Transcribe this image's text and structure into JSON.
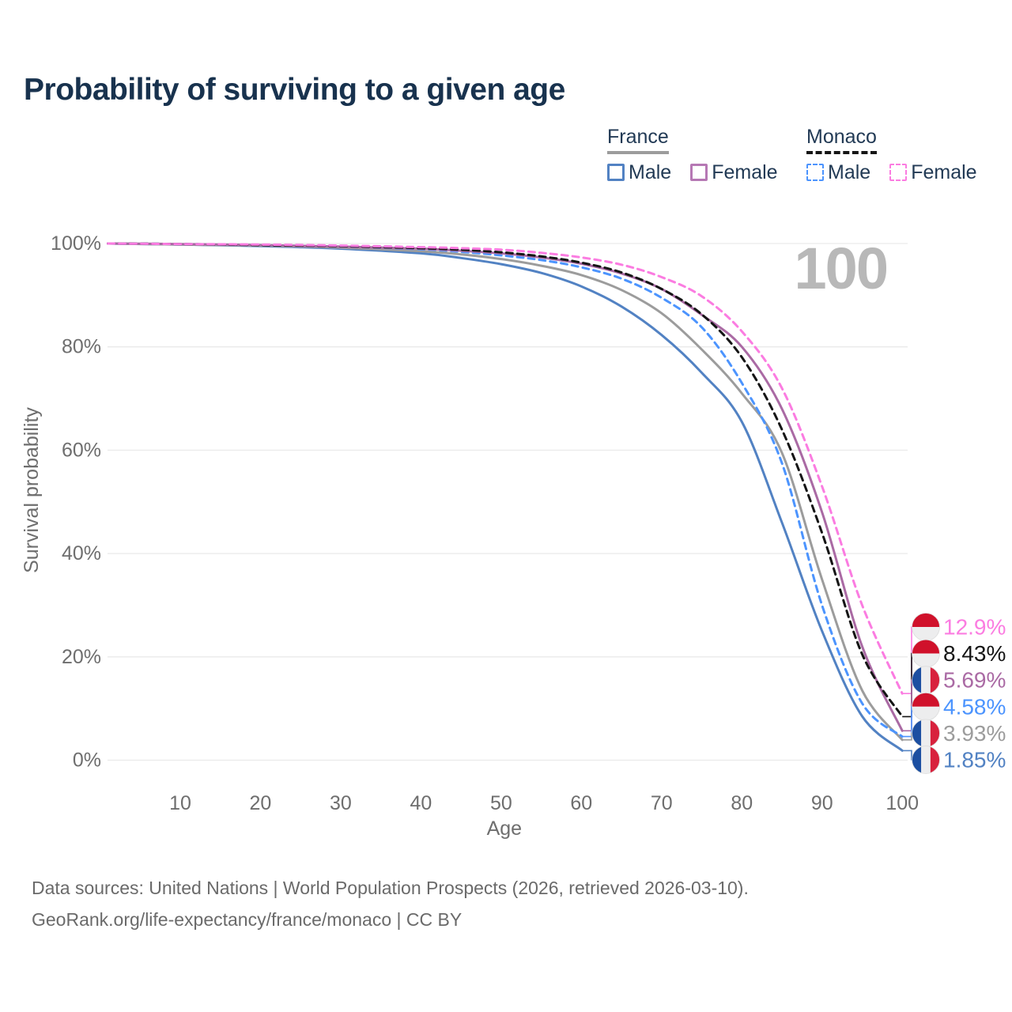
{
  "title": "Probability of surviving to a given age",
  "watermark": "100",
  "legend": {
    "groups": [
      {
        "label": "France",
        "line_color": "#9c9c9c",
        "dashed": false,
        "items": [
          {
            "label": "Male",
            "color": "#5282c3",
            "dashed": false
          },
          {
            "label": "Female",
            "color": "#b678b4",
            "dashed": false
          }
        ]
      },
      {
        "label": "Monaco",
        "line_color": "#151515",
        "dashed": true,
        "items": [
          {
            "label": "Male",
            "color": "#4c94fe",
            "dashed": true
          },
          {
            "label": "Female",
            "color": "#fb7ce1",
            "dashed": true
          }
        ]
      }
    ]
  },
  "chart_data": {
    "type": "line",
    "title": "Probability of surviving to a given age",
    "xlabel": "Age",
    "ylabel": "Survival probability",
    "xlim": [
      1,
      100
    ],
    "ylim": [
      0,
      100
    ],
    "grid": "horizontal",
    "x_ticks": [
      10,
      20,
      30,
      40,
      50,
      60,
      70,
      80,
      90,
      100
    ],
    "y_tick_values": [
      100,
      80,
      60,
      40,
      20,
      0
    ],
    "y_tick_labels": [
      "100%",
      "80%",
      "60%",
      "40%",
      "20%",
      "0%"
    ],
    "ages": [
      1,
      10,
      20,
      30,
      40,
      45,
      50,
      55,
      60,
      65,
      70,
      75,
      80,
      85,
      90,
      95,
      100
    ],
    "series": [
      {
        "name": "Monaco Female",
        "country": "Monaco",
        "sex": "Female",
        "color": "#fb7ce1",
        "dashed": true,
        "flag": "monaco",
        "values": [
          100,
          99.9,
          99.8,
          99.6,
          99.3,
          99.1,
          98.8,
          98.2,
          97.3,
          95.9,
          93.5,
          89.8,
          83.0,
          72.0,
          53.0,
          30.0,
          12.9
        ],
        "end_label": "12.9%"
      },
      {
        "name": "Monaco Both sexes",
        "country": "Monaco",
        "sex": "Both",
        "color": "#151515",
        "dashed": true,
        "flag": "monaco",
        "values": [
          100,
          99.9,
          99.7,
          99.5,
          99.1,
          98.8,
          98.3,
          97.5,
          96.3,
          94.4,
          91.2,
          86.3,
          78.0,
          64.0,
          44.0,
          20.5,
          8.43
        ],
        "end_label": "8.43%"
      },
      {
        "name": "France Female",
        "country": "France",
        "sex": "Female",
        "color": "#aa6aa4",
        "dashed": false,
        "flag": "france",
        "values": [
          100,
          99.9,
          99.7,
          99.4,
          99.0,
          98.6,
          98.1,
          97.3,
          96.1,
          94.2,
          91.2,
          86.2,
          80.0,
          68.0,
          48.0,
          22.0,
          5.69
        ],
        "end_label": "5.69%"
      },
      {
        "name": "Monaco Male",
        "country": "Monaco",
        "sex": "Male",
        "color": "#4c94fe",
        "dashed": true,
        "flag": "monaco",
        "values": [
          100,
          99.9,
          99.7,
          99.4,
          98.9,
          98.4,
          97.7,
          96.8,
          95.4,
          93.2,
          89.5,
          83.8,
          73.0,
          57.5,
          30.0,
          11.0,
          4.58
        ],
        "end_label": "4.58%"
      },
      {
        "name": "France Both sexes",
        "country": "France",
        "sex": "Both",
        "color": "#9c9c9c",
        "dashed": false,
        "flag": "france",
        "values": [
          100,
          99.8,
          99.6,
          99.2,
          98.5,
          97.9,
          97.0,
          95.7,
          93.9,
          91.0,
          86.5,
          79.5,
          71.0,
          59.5,
          35.0,
          13.5,
          3.93
        ],
        "end_label": "3.93%"
      },
      {
        "name": "France Male",
        "country": "France",
        "sex": "Male",
        "color": "#5282c3",
        "dashed": false,
        "flag": "france",
        "values": [
          100,
          99.8,
          99.5,
          99.0,
          98.1,
          97.2,
          96.0,
          94.3,
          91.7,
          87.8,
          82.3,
          75.0,
          65.5,
          46.0,
          25.0,
          8.5,
          1.85
        ],
        "end_label": "1.85%"
      }
    ],
    "flag_colors": {
      "monaco_red": "#d0112b",
      "monaco_white": "#ededee",
      "france_blue": "#1c4fa1",
      "france_white": "#ededee",
      "france_red": "#d8213d"
    },
    "grid_color": "#eaeaea",
    "tick_color": "#6e6e6e",
    "watermark_color": "#b8b8b8"
  },
  "footer": {
    "line1": "Data sources: United Nations | World Population Prospects (2026, retrieved 2026-03-10).",
    "line2": "GeoRank.org/life-expectancy/france/monaco | CC BY"
  }
}
